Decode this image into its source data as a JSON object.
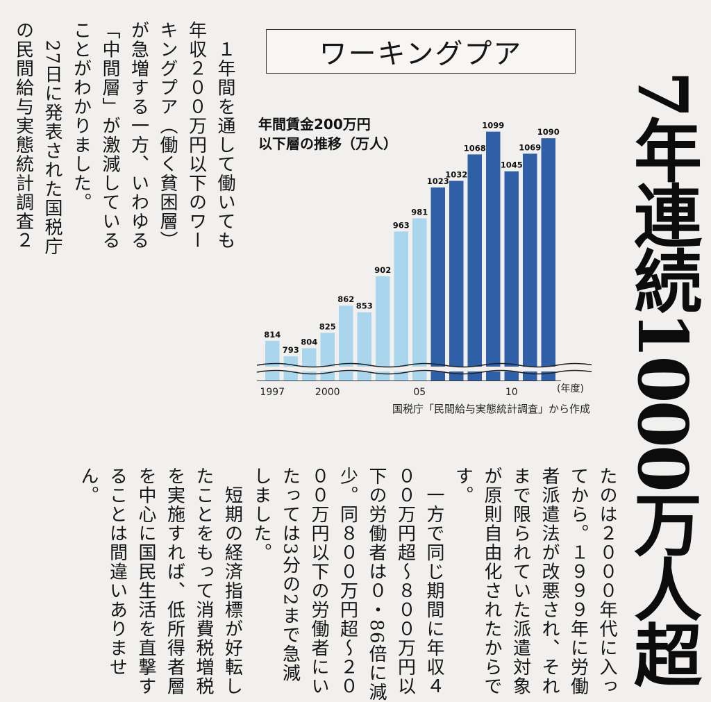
{
  "headline": "7年連続1000万人超",
  "chart_data": {
    "type": "bar",
    "title": "ワーキングプア",
    "subtitle": "年間賃金200万円\n以下層の推移（万人）",
    "categories": [
      "1997",
      "1998",
      "1999",
      "2000",
      "2001",
      "2002",
      "2003",
      "2004",
      "2005",
      "2006",
      "2007",
      "2008",
      "2009",
      "2010",
      "2011",
      "2012"
    ],
    "values": [
      814,
      793,
      804,
      825,
      862,
      853,
      902,
      963,
      981,
      1023,
      1032,
      1068,
      1099,
      1045,
      1069,
      1090
    ],
    "x_tick_labels": [
      {
        "label": "1997",
        "index": 0
      },
      {
        "label": "2000",
        "index": 3
      },
      {
        "label": "05",
        "index": 8
      },
      {
        "label": "10",
        "index": 13
      }
    ],
    "xlabel": "(年度)",
    "ylabel": "",
    "ylim": [
      760,
      1110
    ],
    "axis_break": true,
    "highlight_from_index": 9,
    "colors": {
      "light": "#a9d6ec",
      "dark": "#2f5fa7"
    },
    "source": "国税庁「民間給与実態統計調査」から作成",
    "grid": false,
    "legend": "none"
  },
  "article": {
    "top_text": "　１年間を通して働いても\n年収２００万円以下のワー\nキングプア（働く貧困層）\nが急増する一方、いわゆる\n「中間層」が激減している\nことがわかりました。\n　27日に発表された国税庁\nの民間給与実態統計調査２",
    "bottom_text": "たのは２０００年代に入っ\nてから。１９９９年に労働\n者派遣法が改悪され、それ\nまで限られていた派遣対象\nが原則自由化されたからで\nす。\n　一方で同じ期間に年収４\n００万円超〜８００万円以\n下の労働者は０・86倍に減\n少。同８００万円超〜２０\n００万円以下の労働者にい\nたっては3分の2まで急減\nしました。\n　短期の経済指標が好転し\nたことをもって消費税増税\nを実施すれば、低所得者層\nを中心に国民生活を直撃す\nることは間違いありませ\nん。"
  }
}
